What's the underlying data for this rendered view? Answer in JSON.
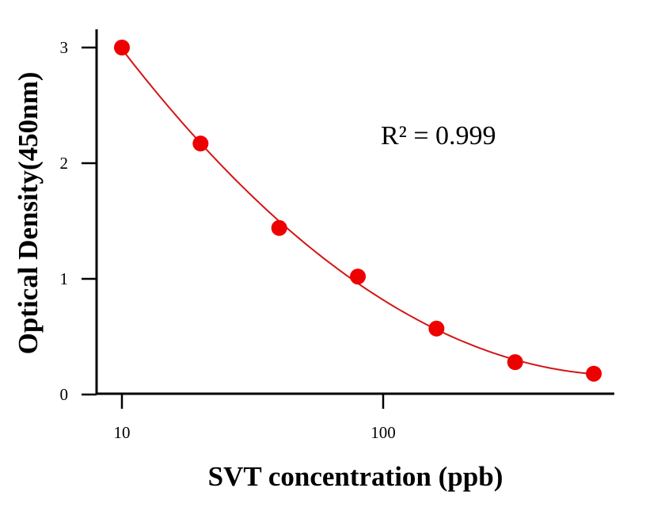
{
  "chart_data": {
    "type": "scatter",
    "xlabel": "SVT concentration (ppb)",
    "ylabel": "Optical Density(450nm)",
    "xscale": "log",
    "xlim": [
      7.9,
      900
    ],
    "ylim": [
      0,
      3.15
    ],
    "xticks": [
      10,
      100
    ],
    "yticks": [
      0,
      1,
      2,
      3
    ],
    "series": [
      {
        "color": "#ee0000",
        "points": [
          {
            "x": 10,
            "y": 3.0
          },
          {
            "x": 20,
            "y": 2.17
          },
          {
            "x": 40,
            "y": 1.44
          },
          {
            "x": 80,
            "y": 1.02
          },
          {
            "x": 160,
            "y": 0.57
          },
          {
            "x": 320,
            "y": 0.28
          },
          {
            "x": 640,
            "y": 0.18
          }
        ]
      }
    ],
    "fit": {
      "type": "curve",
      "color": "#d41515"
    },
    "annotations": [
      {
        "text": "R² = 0.999"
      }
    ],
    "grid": false,
    "legend": "none"
  }
}
